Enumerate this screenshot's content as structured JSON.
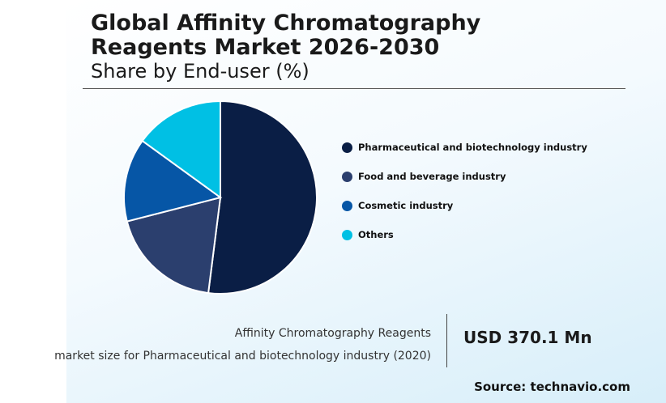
{
  "header": {
    "title_line1": "Global Affinity Chromatography",
    "title_line2": "Reagents Market 2026-2030",
    "subtitle": "Share by End-user (%)"
  },
  "chart_data": {
    "type": "pie",
    "title": "Global Affinity Chromatography Reagents Market 2026-2030",
    "subtitle": "Share by End-user (%)",
    "categories": [
      "Pharmaceutical and biotechnology industry",
      "Food and beverage industry",
      "Cosmetic industry",
      "Others"
    ],
    "values": [
      52,
      19,
      14,
      15
    ],
    "colors": [
      "#0a1e45",
      "#2b3f6e",
      "#0656a6",
      "#00c0e4"
    ],
    "start_angle_deg": 0,
    "direction": "clockwise",
    "legend_position": "right"
  },
  "footer": {
    "label_line1": "Affinity Chromatography Reagents",
    "label_line2": "market size for Pharmaceutical and biotechnology industry (2020)",
    "value": "USD 370.1 Mn",
    "source": "Source: technavio.com"
  }
}
